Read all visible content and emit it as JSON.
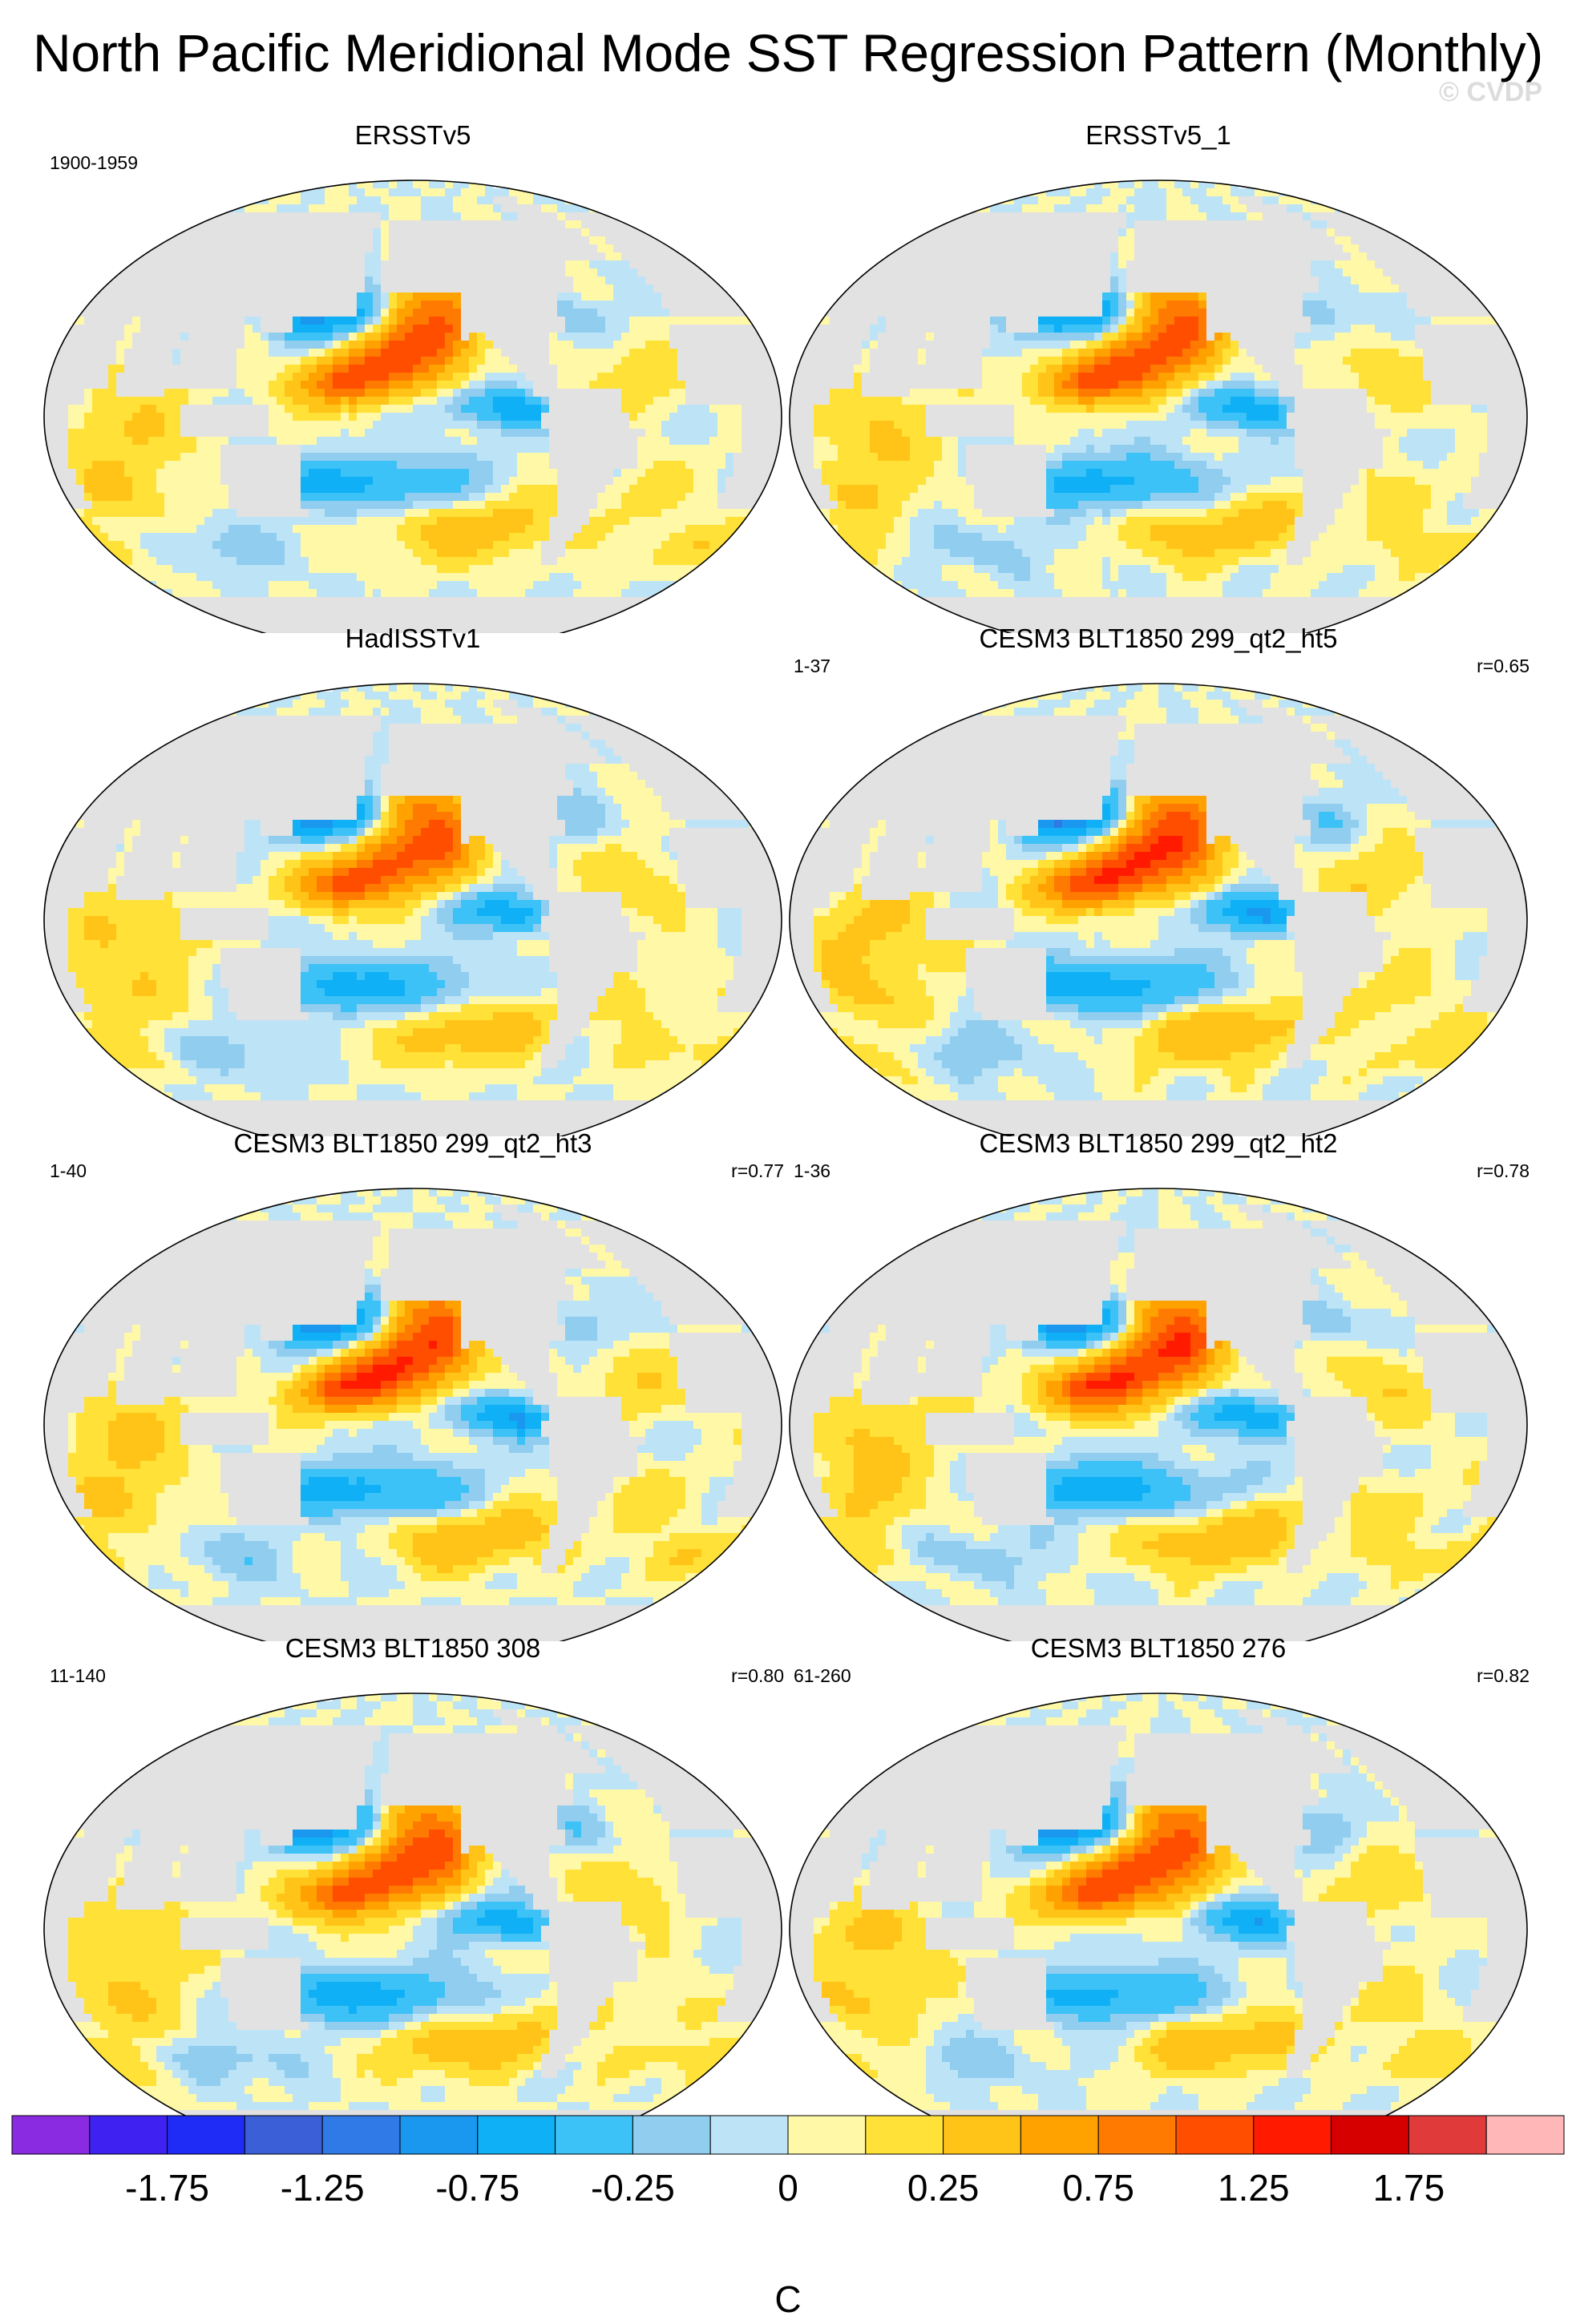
{
  "title": "North Pacific Meridional Mode SST Regression Pattern (Monthly)",
  "watermark": "© CVDP",
  "chart_data": {
    "type": "heatmap",
    "title": "North Pacific Meridional Mode SST Regression Pattern (Monthly)",
    "variable": "SST regression",
    "panels": [
      {
        "title": "ERSSTv5",
        "period": "1900-1959",
        "corr": "",
        "strength": 1.0
      },
      {
        "title": "ERSSTv5_1",
        "period": "",
        "corr": "",
        "strength": 1.0
      },
      {
        "title": "HadISSTv1",
        "period": "",
        "corr": "",
        "strength": 1.0
      },
      {
        "title": "CESM3 BLT1850 299_qt2_ht5",
        "period": "1-37",
        "corr": "r=0.65",
        "strength": 1.15
      },
      {
        "title": "CESM3 BLT1850 299_qt2_ht3",
        "period": "1-40",
        "corr": "r=0.77",
        "strength": 1.1
      },
      {
        "title": "CESM3 BLT1850 299_qt2_ht2",
        "period": "1-36",
        "corr": "r=0.78",
        "strength": 1.1
      },
      {
        "title": "CESM3 BLT1850 308",
        "period": "11-140",
        "corr": "r=0.80",
        "strength": 1.05
      },
      {
        "title": "CESM3 BLT1850 276",
        "period": "61-260",
        "corr": "r=0.82",
        "strength": 1.05
      }
    ],
    "colorbar": {
      "unit": "C",
      "tick_labels": [
        "-1.75",
        "-1.25",
        "-0.75",
        "-0.25",
        "0",
        "0.25",
        "0.75",
        "1.25",
        "1.75"
      ],
      "tick_values": [
        -1.75,
        -1.25,
        -0.75,
        -0.25,
        0,
        0.25,
        0.75,
        1.25,
        1.75
      ],
      "levels": [
        -2,
        -1.75,
        -1.5,
        -1.25,
        -1,
        -0.75,
        -0.5,
        -0.25,
        -0.1,
        0,
        0.1,
        0.25,
        0.5,
        0.75,
        1,
        1.25,
        1.5,
        1.75,
        2
      ],
      "colors": [
        "#8a2be2",
        "#3f22f2",
        "#1f2cf5",
        "#3a5fd6",
        "#2f7ae6",
        "#1a98f0",
        "#0fb0f5",
        "#3cc2f7",
        "#90cdee",
        "#bde3f7",
        "#fff8a6",
        "#ffe138",
        "#ffc417",
        "#ffa200",
        "#ff7a00",
        "#ff4e00",
        "#ff1a00",
        "#d70000",
        "#e03a3a",
        "#ffb7b7"
      ]
    }
  }
}
